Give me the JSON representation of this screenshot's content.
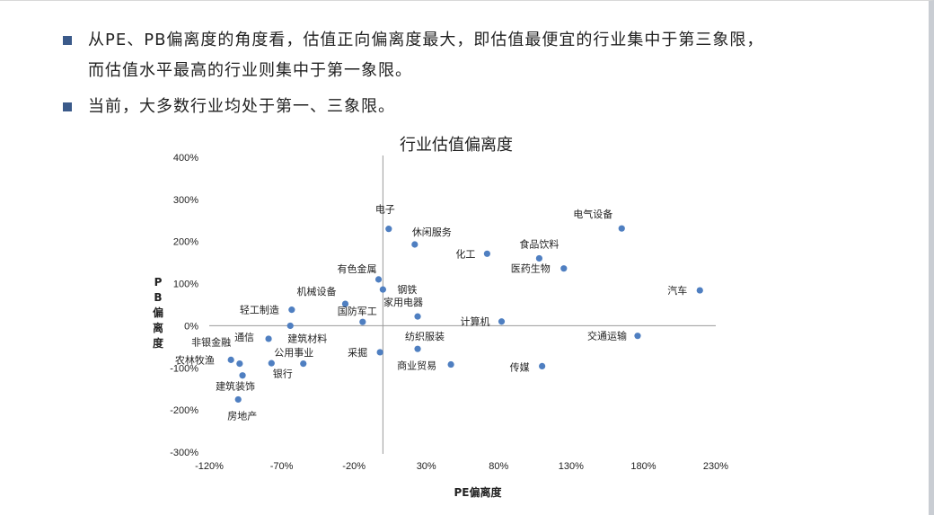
{
  "bullets": [
    {
      "line1": "从PE、PB偏离度的角度看，估值正向偏离度最大，即估值最便宜的行业集中于第三象限，",
      "line2": "而估值水平最高的行业则集中于第一象限。"
    },
    {
      "line1": "当前，大多数行业均处于第一、三象限。",
      "line2": ""
    }
  ],
  "colors": {
    "point": "#4f7fc1",
    "axis": "#9a9a9a",
    "bullet": "#3b5a8a"
  },
  "chart_data": {
    "type": "scatter",
    "title": "行业估值偏离度",
    "xlabel": "PE偏离度",
    "ylabel": "PB偏离度",
    "xlim": [
      -120,
      230
    ],
    "ylim": [
      -300,
      400
    ],
    "x_ticks": [
      -120,
      -70,
      -20,
      30,
      80,
      130,
      180,
      230
    ],
    "y_ticks": [
      400,
      300,
      200,
      100,
      0,
      -100,
      -200,
      -300
    ],
    "x_tick_labels": [
      "-120%",
      "-70%",
      "-20%",
      "30%",
      "80%",
      "130%",
      "180%",
      "230%"
    ],
    "y_tick_labels": [
      "400%",
      "300%",
      "200%",
      "100%",
      "0%",
      "-100%",
      "-200%",
      "-300%"
    ],
    "grid": false,
    "points": [
      {
        "name": "电子",
        "x": 4,
        "y": 230
      },
      {
        "name": "休闲服务",
        "x": 22,
        "y": 193
      },
      {
        "name": "化工",
        "x": 72,
        "y": 171
      },
      {
        "name": "电气设备",
        "x": 165,
        "y": 231
      },
      {
        "name": "食品饮料",
        "x": 108,
        "y": 160
      },
      {
        "name": "医药生物",
        "x": 125,
        "y": 136
      },
      {
        "name": "汽车",
        "x": 219,
        "y": 84
      },
      {
        "name": "有色金属",
        "x": -3,
        "y": 110
      },
      {
        "name": "钢铁",
        "x": 0,
        "y": 86
      },
      {
        "name": "机械设备",
        "x": -26,
        "y": 52
      },
      {
        "name": "轻工制造",
        "x": -63,
        "y": 38
      },
      {
        "name": "家用电器",
        "x": 24,
        "y": 22
      },
      {
        "name": "国防军工",
        "x": -14,
        "y": 9
      },
      {
        "name": "计算机",
        "x": 82,
        "y": 10
      },
      {
        "name": "建筑材料",
        "x": -64,
        "y": 0
      },
      {
        "name": "交通运输",
        "x": 176,
        "y": -24
      },
      {
        "name": "通信",
        "x": -79,
        "y": -31
      },
      {
        "name": "纺织服装",
        "x": 24,
        "y": -55
      },
      {
        "name": "采掘",
        "x": -2,
        "y": -63
      },
      {
        "name": "非银金融",
        "x": -105,
        "y": -81
      },
      {
        "name": "农林牧渔",
        "x": -99,
        "y": -90
      },
      {
        "name": "公用事业",
        "x": -77,
        "y": -89
      },
      {
        "name": "银行",
        "x": -55,
        "y": -90
      },
      {
        "name": "商业贸易",
        "x": 47,
        "y": -92
      },
      {
        "name": "传媒",
        "x": 110,
        "y": -96
      },
      {
        "name": "建筑装饰",
        "x": -97,
        "y": -118
      },
      {
        "name": "房地产",
        "x": -100,
        "y": -175
      }
    ]
  }
}
